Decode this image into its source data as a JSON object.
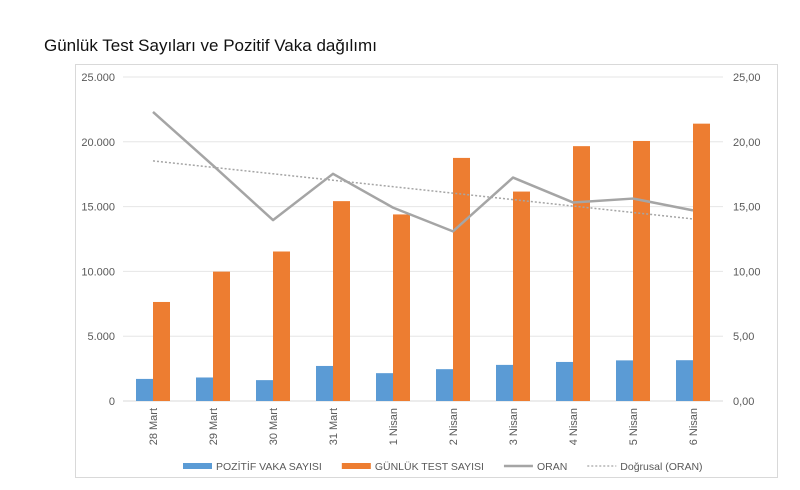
{
  "chart_data": {
    "type": "bar+line",
    "title": "Günlük Test Sayıları ve Pozitif Vaka dağılımı",
    "categories": [
      "28 Mart",
      "29 Mart",
      "30 Mart",
      "31 Mart",
      "1 Nisan",
      "2 Nisan",
      "3 Nisan",
      "4 Nisan",
      "5 Nisan",
      "6 Nisan"
    ],
    "series": [
      {
        "name": "POZİTİF VAKA SAYISI",
        "type": "bar",
        "axis": "left",
        "color": "#5b9bd5",
        "values": [
          1704,
          1815,
          1610,
          2704,
          2148,
          2456,
          2786,
          3013,
          3135,
          3148
        ]
      },
      {
        "name": "GÜNLÜK TEST SAYISI",
        "type": "bar",
        "axis": "left",
        "color": "#ed7d31",
        "values": [
          7641,
          9982,
          11535,
          15422,
          14396,
          18757,
          16160,
          19664,
          20065,
          21400
        ]
      },
      {
        "name": "ORAN",
        "type": "line",
        "axis": "right",
        "color": "#a5a5a5",
        "values": [
          22.3,
          18.18,
          13.96,
          17.53,
          14.92,
          13.09,
          17.24,
          15.32,
          15.62,
          14.71
        ]
      },
      {
        "name": "Doğrusal (ORAN)",
        "type": "trendline-linear",
        "axis": "right",
        "color": "#a5a5a5",
        "style": "dotted"
      }
    ],
    "left_axis": {
      "ylim": [
        0,
        25000
      ],
      "ticks": [
        "0",
        "5.000",
        "10.000",
        "15.000",
        "20.000",
        "25.000"
      ]
    },
    "right_axis": {
      "ylim": [
        0,
        25
      ],
      "ticks": [
        "0,00",
        "5,00",
        "10,00",
        "15,00",
        "20,00",
        "25,00"
      ]
    },
    "grid": true,
    "legend": "bottom"
  }
}
